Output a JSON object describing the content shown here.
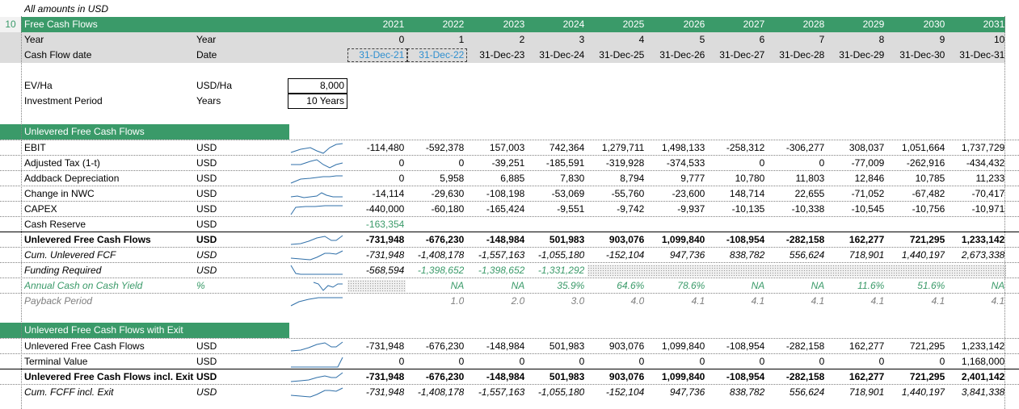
{
  "sheet": {
    "note": "All amounts in USD",
    "header": {
      "row_number": "10",
      "title": "Free Cash Flows",
      "years": [
        "2021",
        "2022",
        "2023",
        "2024",
        "2025",
        "2026",
        "2027",
        "2028",
        "2029",
        "2030",
        "2031"
      ]
    },
    "year_row": {
      "label": "Year",
      "unit": "Year",
      "values": [
        "0",
        "1",
        "2",
        "3",
        "4",
        "5",
        "6",
        "7",
        "8",
        "9",
        "10"
      ]
    },
    "date_row": {
      "label": "Cash Flow date",
      "unit": "Date",
      "values": [
        "31-Dec-21",
        "31-Dec-22",
        "31-Dec-23",
        "31-Dec-24",
        "31-Dec-25",
        "31-Dec-26",
        "31-Dec-27",
        "31-Dec-28",
        "31-Dec-29",
        "31-Dec-30",
        "31-Dec-31"
      ]
    },
    "inputs": [
      {
        "label": "EV/Ha",
        "unit": "USD/Ha",
        "value": "8,000"
      },
      {
        "label": "Investment Period",
        "unit": "Years",
        "value": "10 Years"
      }
    ],
    "section1": {
      "title": "Unlevered Free Cash Flows",
      "rows": [
        {
          "label": "EBIT",
          "unit": "USD",
          "values": [
            "-114,480",
            "-592,378",
            "157,003",
            "742,364",
            "1,279,711",
            "1,498,133",
            "-258,312",
            "-306,277",
            "308,037",
            "1,051,664",
            "1,737,729"
          ]
        },
        {
          "label": "Adjusted Tax (1-t)",
          "unit": "USD",
          "values": [
            "0",
            "0",
            "-39,251",
            "-185,591",
            "-319,928",
            "-374,533",
            "0",
            "0",
            "-77,009",
            "-262,916",
            "-434,432"
          ]
        },
        {
          "label": "Addback Depreciation",
          "unit": "USD",
          "values": [
            "0",
            "5,958",
            "6,885",
            "7,830",
            "8,794",
            "9,777",
            "10,780",
            "11,803",
            "12,846",
            "10,785",
            "11,233"
          ]
        },
        {
          "label": "Change in NWC",
          "unit": "USD",
          "values": [
            "-14,114",
            "-29,630",
            "-108,198",
            "-53,069",
            "-55,760",
            "-23,600",
            "148,714",
            "22,655",
            "-71,052",
            "-67,482",
            "-70,417"
          ]
        },
        {
          "label": "CAPEX",
          "unit": "USD",
          "values": [
            "-440,000",
            "-60,180",
            "-165,424",
            "-9,551",
            "-9,742",
            "-9,937",
            "-10,135",
            "-10,338",
            "-10,545",
            "-10,756",
            "-10,971"
          ]
        },
        {
          "label": "Cash Reserve",
          "unit": "USD",
          "values": [
            "-163,354",
            "",
            "",
            "",
            "",
            "",
            "",
            "",
            "",
            "",
            ""
          ]
        },
        {
          "label": "Unlevered Free Cash Flows",
          "unit": "USD",
          "values": [
            "-731,948",
            "-676,230",
            "-148,984",
            "501,983",
            "903,076",
            "1,099,840",
            "-108,954",
            "-282,158",
            "162,277",
            "721,295",
            "1,233,142"
          ]
        },
        {
          "label": "Cum. Unlevered FCF",
          "unit": "USD",
          "values": [
            "-731,948",
            "-1,408,178",
            "-1,557,163",
            "-1,055,180",
            "-152,104",
            "947,736",
            "838,782",
            "556,624",
            "718,901",
            "1,440,197",
            "2,673,338"
          ]
        },
        {
          "label": "Funding Required",
          "unit": "USD",
          "values": [
            "-568,594",
            "-1,398,652",
            "-1,398,652",
            "-1,331,292",
            "",
            "",
            "",
            "",
            "",
            "",
            ""
          ]
        },
        {
          "label": "Annual Cash on Cash Yield",
          "unit": "%",
          "values": [
            "",
            "NA",
            "NA",
            "35.9%",
            "64.6%",
            "78.6%",
            "NA",
            "NA",
            "11.6%",
            "51.6%",
            "NA"
          ]
        },
        {
          "label": "Payback Period",
          "unit": "",
          "values": [
            "",
            "1.0",
            "2.0",
            "3.0",
            "4.0",
            "4.1",
            "4.1",
            "4.1",
            "4.1",
            "4.1",
            "4.1"
          ]
        }
      ]
    },
    "section2": {
      "title": "Unlevered Free Cash Flows with Exit",
      "rows": [
        {
          "label": "Unlevered Free Cash Flows",
          "unit": "USD",
          "values": [
            "-731,948",
            "-676,230",
            "-148,984",
            "501,983",
            "903,076",
            "1,099,840",
            "-108,954",
            "-282,158",
            "162,277",
            "721,295",
            "1,233,142"
          ]
        },
        {
          "label": "Terminal Value",
          "unit": "USD",
          "values": [
            "0",
            "0",
            "0",
            "0",
            "0",
            "0",
            "0",
            "0",
            "0",
            "0",
            "1,168,000"
          ]
        },
        {
          "label": "Unlevered Free Cash Flows incl. Exit",
          "unit": "USD",
          "values": [
            "-731,948",
            "-676,230",
            "-148,984",
            "501,983",
            "903,076",
            "1,099,840",
            "-108,954",
            "-282,158",
            "162,277",
            "721,295",
            "2,401,142"
          ]
        },
        {
          "label": "Cum. FCFF incl. Exit",
          "unit": "USD",
          "values": [
            "-731,948",
            "-1,408,178",
            "-1,557,163",
            "-1,055,180",
            "-152,104",
            "947,736",
            "838,782",
            "556,624",
            "718,901",
            "1,440,197",
            "3,841,338"
          ]
        }
      ]
    },
    "colors": {
      "header_green": "#3a9a69",
      "text_green": "#3a9a69",
      "text_gray": "#7f7f7f",
      "date_blue": "#2e8fd0",
      "header_gray": "#dcdcdc"
    }
  }
}
